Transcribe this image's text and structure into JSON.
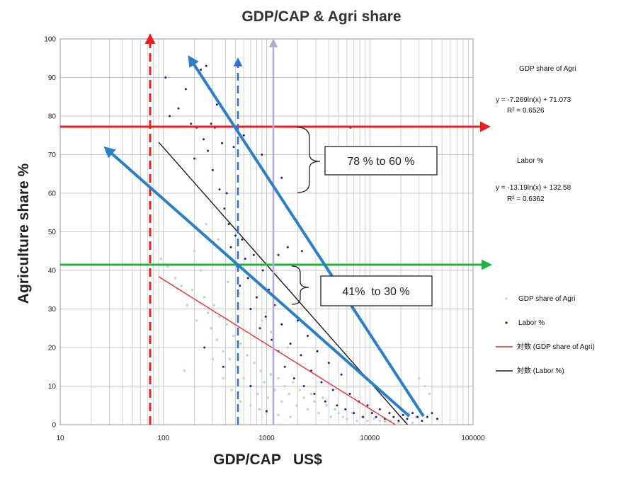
{
  "chart_data": {
    "type": "scatter",
    "title": "GDP/CAP & Agri share",
    "xlabel": "GDP/CAP   US$",
    "ylabel": "Agriculture  share %",
    "x_scale": "log",
    "xlim": [
      10,
      100000
    ],
    "ylim": [
      0,
      100
    ],
    "x_ticks": [
      10,
      100,
      1000,
      10000,
      100000
    ],
    "x_tick_labels": [
      "10",
      "100",
      "1000",
      "10000",
      "100000"
    ],
    "y_ticks": [
      0,
      10,
      20,
      30,
      40,
      50,
      60,
      70,
      80,
      90,
      100
    ],
    "y_tick_labels": [
      "0",
      "10",
      "20",
      "30",
      "40",
      "50",
      "60",
      "70",
      "80",
      "90",
      "100"
    ],
    "grid": true,
    "legend_position": "right",
    "series": [
      {
        "name": "GDP share of Agri",
        "color": "#b8d8dc",
        "marker": "circle",
        "points": [
          [
            95,
            43
          ],
          [
            110,
            41
          ],
          [
            130,
            38
          ],
          [
            150,
            36
          ],
          [
            170,
            31
          ],
          [
            190,
            35
          ],
          [
            210,
            27
          ],
          [
            230,
            40
          ],
          [
            250,
            33
          ],
          [
            270,
            29
          ],
          [
            290,
            25
          ],
          [
            310,
            31
          ],
          [
            330,
            22
          ],
          [
            350,
            28
          ],
          [
            380,
            19
          ],
          [
            410,
            26
          ],
          [
            440,
            17
          ],
          [
            480,
            23
          ],
          [
            520,
            15
          ],
          [
            560,
            21
          ],
          [
            600,
            12
          ],
          [
            650,
            18
          ],
          [
            700,
            10
          ],
          [
            760,
            16
          ],
          [
            820,
            8
          ],
          [
            880,
            14
          ],
          [
            950,
            11
          ],
          [
            1020,
            7
          ],
          [
            1100,
            13
          ],
          [
            1200,
            9
          ],
          [
            1300,
            12
          ],
          [
            1400,
            6
          ],
          [
            1500,
            10
          ],
          [
            1650,
            8
          ],
          [
            1800,
            11
          ],
          [
            1950,
            5
          ],
          [
            2100,
            9
          ],
          [
            2300,
            7
          ],
          [
            2500,
            4
          ],
          [
            2700,
            8
          ],
          [
            2900,
            6
          ],
          [
            3200,
            3
          ],
          [
            3500,
            7
          ],
          [
            3800,
            5
          ],
          [
            4200,
            2
          ],
          [
            4600,
            4
          ],
          [
            5000,
            3
          ],
          [
            5500,
            2
          ],
          [
            6000,
            1.5
          ],
          [
            6800,
            3
          ],
          [
            7500,
            1
          ],
          [
            8500,
            2
          ],
          [
            9500,
            1
          ],
          [
            11000,
            1.5
          ],
          [
            12500,
            1
          ],
          [
            14000,
            0.8
          ],
          [
            16000,
            1
          ],
          [
            19000,
            0.6
          ],
          [
            22000,
            0.8
          ],
          [
            26000,
            0.5
          ],
          [
            160,
            14
          ],
          [
            200,
            45
          ],
          [
            260,
            52
          ],
          [
            340,
            48
          ],
          [
            420,
            37
          ],
          [
            540,
            34
          ],
          [
            700,
            30
          ],
          [
            900,
            27
          ],
          [
            1100,
            24
          ],
          [
            1600,
            20
          ],
          [
            300,
            17
          ],
          [
            380,
            12
          ],
          [
            460,
            9
          ],
          [
            560,
            6
          ],
          [
            700,
            5
          ],
          [
            850,
            4
          ],
          [
            1000,
            3
          ],
          [
            1300,
            2.5
          ],
          [
            1700,
            2
          ],
          [
            30000,
            12
          ],
          [
            34000,
            10
          ],
          [
            38000,
            8
          ],
          [
            28000,
            2
          ],
          [
            24000,
            3
          ]
        ]
      },
      {
        "name": "Labor %",
        "color": "#1e1e8c",
        "marker": "circle",
        "points": [
          [
            105,
            90
          ],
          [
            115,
            80
          ],
          [
            140,
            82
          ],
          [
            165,
            87
          ],
          [
            185,
            78
          ],
          [
            200,
            69
          ],
          [
            210,
            77
          ],
          [
            230,
            92
          ],
          [
            245,
            74
          ],
          [
            260,
            93
          ],
          [
            270,
            71
          ],
          [
            290,
            78
          ],
          [
            300,
            66
          ],
          [
            315,
            77
          ],
          [
            330,
            83
          ],
          [
            350,
            61
          ],
          [
            370,
            73
          ],
          [
            390,
            56
          ],
          [
            410,
            60
          ],
          [
            430,
            52
          ],
          [
            450,
            46
          ],
          [
            480,
            72
          ],
          [
            500,
            49
          ],
          [
            520,
            41
          ],
          [
            550,
            36
          ],
          [
            580,
            48
          ],
          [
            620,
            43
          ],
          [
            660,
            38
          ],
          [
            700,
            30
          ],
          [
            750,
            44
          ],
          [
            800,
            33
          ],
          [
            860,
            25
          ],
          [
            920,
            40
          ],
          [
            980,
            28
          ],
          [
            1050,
            35
          ],
          [
            1120,
            22
          ],
          [
            1200,
            31
          ],
          [
            1300,
            19
          ],
          [
            1400,
            26
          ],
          [
            1500,
            15
          ],
          [
            1600,
            46
          ],
          [
            1700,
            21
          ],
          [
            1850,
            12
          ],
          [
            2000,
            27
          ],
          [
            2150,
            18
          ],
          [
            2300,
            10
          ],
          [
            2500,
            23
          ],
          [
            2700,
            14
          ],
          [
            2900,
            8
          ],
          [
            3100,
            19
          ],
          [
            3400,
            11
          ],
          [
            3700,
            6
          ],
          [
            4000,
            16
          ],
          [
            4400,
            9
          ],
          [
            4800,
            5
          ],
          [
            5300,
            13
          ],
          [
            5800,
            4
          ],
          [
            6400,
            8
          ],
          [
            7000,
            3
          ],
          [
            7800,
            6
          ],
          [
            8600,
            2
          ],
          [
            9500,
            5
          ],
          [
            10500,
            3
          ],
          [
            11500,
            2
          ],
          [
            12500,
            4
          ],
          [
            14000,
            1.5
          ],
          [
            15500,
            3
          ],
          [
            17000,
            2
          ],
          [
            19000,
            1
          ],
          [
            21000,
            2.5
          ],
          [
            23000,
            1.5
          ],
          [
            26000,
            3
          ],
          [
            29000,
            2
          ],
          [
            32000,
            1
          ],
          [
            36000,
            2
          ],
          [
            40000,
            3
          ],
          [
            45000,
            1.5
          ],
          [
            600,
            75
          ],
          [
            900,
            70
          ],
          [
            1400,
            64
          ],
          [
            1300,
            44
          ],
          [
            2200,
            45
          ],
          [
            6500,
            77
          ],
          [
            1000,
            3.5
          ],
          [
            380,
            15
          ],
          [
            250,
            20
          ],
          [
            700,
            10
          ]
        ]
      }
    ],
    "trendlines": [
      {
        "series": "GDP share of Agri",
        "legend_label": "対数 (GDP share of Agri)",
        "equation": "y = -7.269ln(x) + 71.073",
        "r2": "R² = 0.6526",
        "a": -7.269,
        "b": 71.073,
        "color": "#ff2a2a"
      },
      {
        "series": "Labor %",
        "legend_label": "対数 (Labor %)",
        "equation": "y = -13.19ln(x) + 132.58",
        "r2": "R² = 0.6362",
        "a": -13.19,
        "b": 132.58,
        "color": "#1a1a1a"
      }
    ],
    "equation_headers": [
      "GDP share of Agri",
      "Labor %"
    ],
    "annotations": [
      {
        "text": "78 % to 60 %"
      },
      {
        "text": "41%  to 30 %"
      }
    ],
    "colors": {
      "red": "#ee1c1c",
      "green": "#1fb33f",
      "blue_arrow": "#2a7fc9",
      "blue_dash": "#2b6fdc",
      "lavender": "#b7a6d8",
      "grid": "#c8c8c8"
    }
  }
}
